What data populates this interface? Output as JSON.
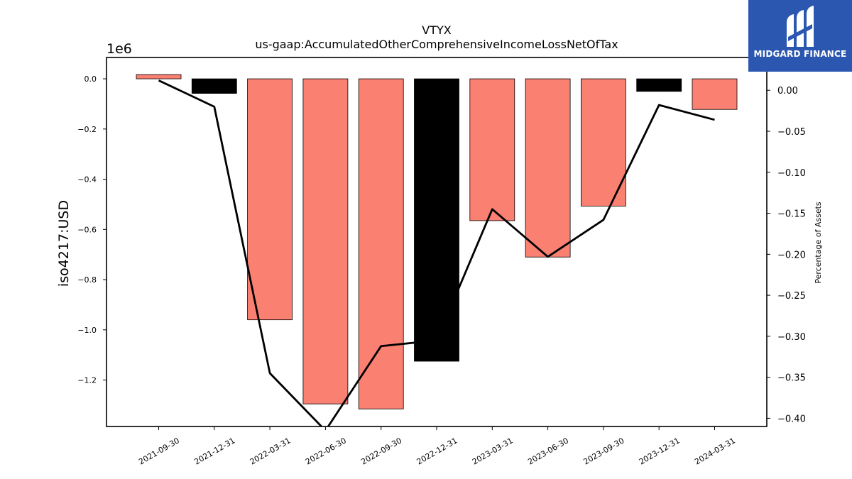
{
  "logo": {
    "text": "MIDGARD FINANCE",
    "bg_color": "#2b57b0"
  },
  "chart_data": {
    "type": "bar",
    "title": "VTYX",
    "subtitle": "us-gaap:AccumulatedOtherComprehensiveIncomeLossNetOfTax",
    "ylabel": "iso4217:USD",
    "y2label": "Percentage of Assets",
    "y_scale_label": "1e6",
    "categories": [
      "2021-09-30",
      "2021-12-31",
      "2022-03-31",
      "2022-06-30",
      "2022-09-30",
      "2022-12-31",
      "2023-03-31",
      "2023-06-30",
      "2023-09-30",
      "2023-12-31",
      "2024-03-31"
    ],
    "values": [
      17000,
      -58000,
      -960000,
      -1295000,
      -1315000,
      -1125000,
      -565000,
      -710000,
      -507000,
      -50000,
      -122000
    ],
    "bar_colors": [
      "#fa8072",
      "#000000",
      "#fa8072",
      "#fa8072",
      "#fa8072",
      "#000000",
      "#fa8072",
      "#fa8072",
      "#fa8072",
      "#000000",
      "#fa8072"
    ],
    "ylim": [
      -1385000,
      85000
    ],
    "yticks": [
      0,
      -200000,
      -400000,
      -600000,
      -800000,
      -1000000,
      -1200000
    ],
    "ytick_labels": [
      "0.0",
      "−0.2",
      "−0.4",
      "−0.6",
      "−0.8",
      "−1.0",
      "−1.2"
    ],
    "line": {
      "values": [
        0.012,
        -0.02,
        -0.345,
        -0.415,
        -0.312,
        -0.305,
        -0.145,
        -0.203,
        -0.158,
        -0.018,
        -0.036
      ],
      "color": "#000000"
    },
    "y2lim": [
      -0.41,
      0.04
    ],
    "y2ticks": [
      0.0,
      -0.05,
      -0.1,
      -0.15,
      -0.2,
      -0.25,
      -0.3,
      -0.35,
      -0.4
    ],
    "y2tick_labels": [
      "0.00",
      "−0.05",
      "−0.10",
      "−0.15",
      "−0.20",
      "−0.25",
      "−0.30",
      "−0.35",
      "−0.40"
    ],
    "grid": false,
    "legend": "none"
  }
}
